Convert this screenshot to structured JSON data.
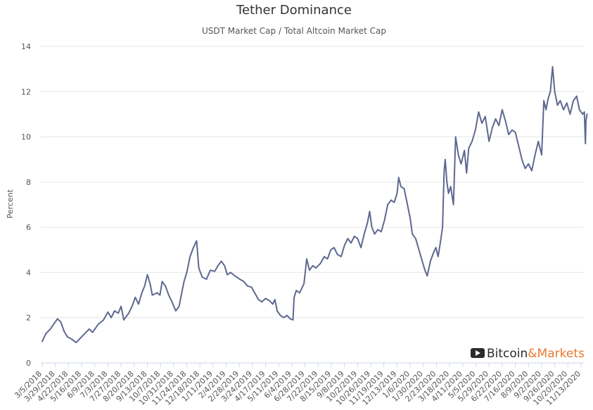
{
  "chart_data": {
    "type": "line",
    "title": "Tether Dominance",
    "subtitle": "USDT Market Cap / Total Altcoin Market Cap",
    "xlabel": "",
    "ylabel": "Percent",
    "ylim": [
      0,
      14
    ],
    "yticks": [
      "0",
      "2",
      "4",
      "6",
      "8",
      "10",
      "12",
      "14"
    ],
    "grid": true,
    "legend": "none",
    "x_tick_labels": [
      "3/5/2018",
      "3/29/2018",
      "4/22/2018",
      "5/16/2018",
      "6/9/2018",
      "7/3/2018",
      "7/27/2018",
      "8/20/2018",
      "9/13/2018",
      "10/7/2018",
      "10/31/2018",
      "11/24/2018",
      "12/18/2018",
      "1/11/2019",
      "2/4/2019",
      "2/28/2019",
      "3/24/2019",
      "4/17/2019",
      "5/11/2019",
      "6/4/2019",
      "6/28/2019",
      "7/22/2019",
      "8/15/2019",
      "9/8/2019",
      "10/2/2019",
      "10/26/2019",
      "11/19/2019",
      "12/13/2019",
      "1/6/2020",
      "1/30/2020",
      "2/23/2020",
      "3/18/2020",
      "4/11/2020",
      "5/5/2020",
      "5/29/2020",
      "6/22/2020",
      "7/16/2020",
      "8/9/2020",
      "9/2/2020",
      "9/26/2020",
      "10/20/2020",
      "11/13/2020"
    ],
    "series": [
      {
        "color": "#5e6890",
        "points": [
          [
            "2018-03-05",
            0.95
          ],
          [
            "2018-03-12",
            1.3
          ],
          [
            "2018-03-20",
            1.5
          ],
          [
            "2018-03-27",
            1.75
          ],
          [
            "2018-04-02",
            1.95
          ],
          [
            "2018-04-08",
            1.8
          ],
          [
            "2018-04-14",
            1.4
          ],
          [
            "2018-04-20",
            1.15
          ],
          [
            "2018-04-28",
            1.05
          ],
          [
            "2018-05-06",
            0.9
          ],
          [
            "2018-05-14",
            1.1
          ],
          [
            "2018-05-22",
            1.3
          ],
          [
            "2018-05-30",
            1.5
          ],
          [
            "2018-06-05",
            1.35
          ],
          [
            "2018-06-15",
            1.7
          ],
          [
            "2018-06-25",
            1.9
          ],
          [
            "2018-07-03",
            2.25
          ],
          [
            "2018-07-09",
            2.0
          ],
          [
            "2018-07-15",
            2.3
          ],
          [
            "2018-07-22",
            2.2
          ],
          [
            "2018-07-27",
            2.5
          ],
          [
            "2018-08-01",
            1.9
          ],
          [
            "2018-08-10",
            2.2
          ],
          [
            "2018-08-16",
            2.5
          ],
          [
            "2018-08-22",
            2.9
          ],
          [
            "2018-08-28",
            2.6
          ],
          [
            "2018-09-03",
            3.1
          ],
          [
            "2018-09-08",
            3.4
          ],
          [
            "2018-09-13",
            3.9
          ],
          [
            "2018-09-18",
            3.5
          ],
          [
            "2018-09-22",
            3.0
          ],
          [
            "2018-10-01",
            3.1
          ],
          [
            "2018-10-06",
            3.0
          ],
          [
            "2018-10-10",
            3.6
          ],
          [
            "2018-10-16",
            3.4
          ],
          [
            "2018-10-22",
            3.0
          ],
          [
            "2018-10-28",
            2.7
          ],
          [
            "2018-11-04",
            2.3
          ],
          [
            "2018-11-10",
            2.5
          ],
          [
            "2018-11-14",
            3.0
          ],
          [
            "2018-11-19",
            3.6
          ],
          [
            "2018-11-24",
            4.0
          ],
          [
            "2018-11-30",
            4.7
          ],
          [
            "2018-12-06",
            5.1
          ],
          [
            "2018-12-12",
            5.4
          ],
          [
            "2018-12-16",
            4.2
          ],
          [
            "2018-12-22",
            3.8
          ],
          [
            "2018-12-30",
            3.7
          ],
          [
            "2019-01-06",
            4.1
          ],
          [
            "2019-01-14",
            4.05
          ],
          [
            "2019-01-20",
            4.3
          ],
          [
            "2019-01-26",
            4.5
          ],
          [
            "2019-02-01",
            4.3
          ],
          [
            "2019-02-06",
            3.9
          ],
          [
            "2019-02-12",
            4.0
          ],
          [
            "2019-02-20",
            3.85
          ],
          [
            "2019-03-01",
            3.7
          ],
          [
            "2019-03-08",
            3.6
          ],
          [
            "2019-03-15",
            3.4
          ],
          [
            "2019-03-22",
            3.35
          ],
          [
            "2019-03-28",
            3.1
          ],
          [
            "2019-04-04",
            2.8
          ],
          [
            "2019-04-10",
            2.7
          ],
          [
            "2019-04-17",
            2.85
          ],
          [
            "2019-04-24",
            2.75
          ],
          [
            "2019-04-30",
            2.6
          ],
          [
            "2019-05-04",
            2.8
          ],
          [
            "2019-05-08",
            2.3
          ],
          [
            "2019-05-14",
            2.1
          ],
          [
            "2019-05-20",
            2.0
          ],
          [
            "2019-05-26",
            2.1
          ],
          [
            "2019-06-01",
            1.95
          ],
          [
            "2019-06-06",
            1.9
          ],
          [
            "2019-06-08",
            2.9
          ],
          [
            "2019-06-12",
            3.2
          ],
          [
            "2019-06-18",
            3.1
          ],
          [
            "2019-06-26",
            3.5
          ],
          [
            "2019-07-01",
            4.6
          ],
          [
            "2019-07-06",
            4.1
          ],
          [
            "2019-07-12",
            4.3
          ],
          [
            "2019-07-18",
            4.2
          ],
          [
            "2019-07-26",
            4.4
          ],
          [
            "2019-08-02",
            4.7
          ],
          [
            "2019-08-08",
            4.6
          ],
          [
            "2019-08-14",
            5.0
          ],
          [
            "2019-08-20",
            5.1
          ],
          [
            "2019-08-26",
            4.8
          ],
          [
            "2019-09-02",
            4.7
          ],
          [
            "2019-09-08",
            5.2
          ],
          [
            "2019-09-14",
            5.5
          ],
          [
            "2019-09-20",
            5.3
          ],
          [
            "2019-09-26",
            5.6
          ],
          [
            "2019-10-02",
            5.5
          ],
          [
            "2019-10-08",
            5.1
          ],
          [
            "2019-10-14",
            5.7
          ],
          [
            "2019-10-20",
            6.2
          ],
          [
            "2019-10-24",
            6.7
          ],
          [
            "2019-10-28",
            6.0
          ],
          [
            "2019-11-02",
            5.7
          ],
          [
            "2019-11-08",
            5.9
          ],
          [
            "2019-11-14",
            5.8
          ],
          [
            "2019-11-20",
            6.3
          ],
          [
            "2019-11-26",
            7.0
          ],
          [
            "2019-12-02",
            7.2
          ],
          [
            "2019-12-08",
            7.1
          ],
          [
            "2019-12-13",
            7.5
          ],
          [
            "2019-12-16",
            8.2
          ],
          [
            "2019-12-20",
            7.8
          ],
          [
            "2019-12-26",
            7.7
          ],
          [
            "2020-01-01",
            7.0
          ],
          [
            "2020-01-06",
            6.4
          ],
          [
            "2020-01-10",
            5.7
          ],
          [
            "2020-01-16",
            5.5
          ],
          [
            "2020-01-22",
            5.0
          ],
          [
            "2020-01-28",
            4.5
          ],
          [
            "2020-02-02",
            4.1
          ],
          [
            "2020-02-06",
            3.85
          ],
          [
            "2020-02-12",
            4.5
          ],
          [
            "2020-02-18",
            4.9
          ],
          [
            "2020-02-22",
            5.1
          ],
          [
            "2020-02-26",
            4.7
          ],
          [
            "2020-03-01",
            5.3
          ],
          [
            "2020-03-05",
            6.0
          ],
          [
            "2020-03-08",
            8.5
          ],
          [
            "2020-03-10",
            9.0
          ],
          [
            "2020-03-13",
            8.0
          ],
          [
            "2020-03-16",
            7.5
          ],
          [
            "2020-03-20",
            7.8
          ],
          [
            "2020-03-25",
            7.0
          ],
          [
            "2020-03-29",
            10.0
          ],
          [
            "2020-04-03",
            9.2
          ],
          [
            "2020-04-08",
            8.8
          ],
          [
            "2020-04-14",
            9.4
          ],
          [
            "2020-04-18",
            8.4
          ],
          [
            "2020-04-22",
            9.5
          ],
          [
            "2020-04-28",
            9.8
          ],
          [
            "2020-05-04",
            10.3
          ],
          [
            "2020-05-10",
            11.1
          ],
          [
            "2020-05-16",
            10.6
          ],
          [
            "2020-05-22",
            10.9
          ],
          [
            "2020-05-29",
            9.8
          ],
          [
            "2020-06-04",
            10.4
          ],
          [
            "2020-06-10",
            10.8
          ],
          [
            "2020-06-16",
            10.5
          ],
          [
            "2020-06-22",
            11.2
          ],
          [
            "2020-06-28",
            10.7
          ],
          [
            "2020-07-04",
            10.1
          ],
          [
            "2020-07-10",
            10.3
          ],
          [
            "2020-07-16",
            10.2
          ],
          [
            "2020-07-22",
            9.6
          ],
          [
            "2020-07-28",
            9.0
          ],
          [
            "2020-08-03",
            8.6
          ],
          [
            "2020-08-09",
            8.8
          ],
          [
            "2020-08-15",
            8.5
          ],
          [
            "2020-08-21",
            9.2
          ],
          [
            "2020-08-27",
            9.8
          ],
          [
            "2020-09-02",
            9.2
          ],
          [
            "2020-09-06",
            11.6
          ],
          [
            "2020-09-10",
            11.2
          ],
          [
            "2020-09-14",
            11.7
          ],
          [
            "2020-09-18",
            12.0
          ],
          [
            "2020-09-22",
            13.1
          ],
          [
            "2020-09-26",
            12.0
          ],
          [
            "2020-10-01",
            11.4
          ],
          [
            "2020-10-06",
            11.6
          ],
          [
            "2020-10-12",
            11.2
          ],
          [
            "2020-10-18",
            11.5
          ],
          [
            "2020-10-24",
            11.0
          ],
          [
            "2020-10-30",
            11.6
          ],
          [
            "2020-11-05",
            11.8
          ],
          [
            "2020-11-10",
            11.2
          ],
          [
            "2020-11-16",
            11.0
          ],
          [
            "2020-11-19",
            11.1
          ],
          [
            "2020-11-21",
            9.7
          ],
          [
            "2020-11-22",
            10.7
          ],
          [
            "2020-11-24",
            11.0
          ]
        ]
      }
    ]
  },
  "branding": {
    "icon": "play-icon",
    "part1": "Bitcoin",
    "part2": "&Markets"
  }
}
